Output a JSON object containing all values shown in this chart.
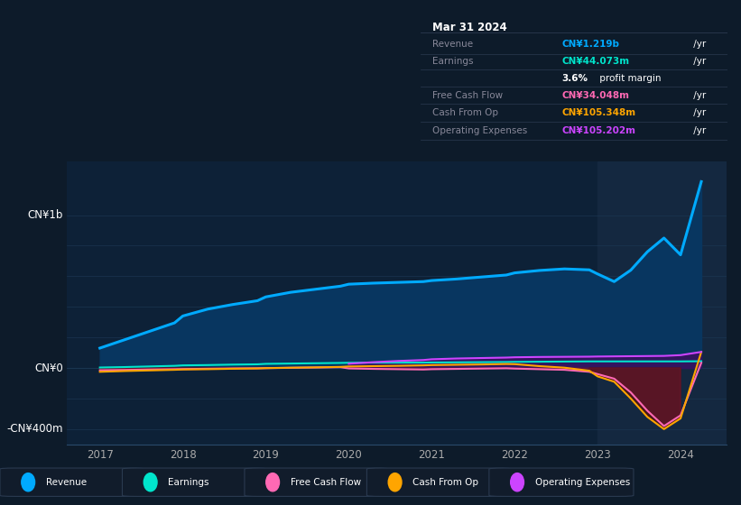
{
  "bg_color": "#0d1b2a",
  "plot_bg": "#0d2137",
  "ylabel_top": "CN¥1b",
  "ylabel_zero": "CN¥0",
  "ylabel_bottom": "-CN¥400m",
  "ylim": [
    -500,
    1350
  ],
  "xlim": [
    2016.6,
    2024.55
  ],
  "xtick_labels": [
    "2017",
    "2018",
    "2019",
    "2020",
    "2021",
    "2022",
    "2023",
    "2024"
  ],
  "xtick_values": [
    2017,
    2018,
    2019,
    2020,
    2021,
    2022,
    2023,
    2024
  ],
  "grid_color": "#1a3550",
  "revenue_color": "#00aaff",
  "revenue_fill": "#083660",
  "earnings_color": "#00e5cc",
  "fcf_color": "#ff69b4",
  "cashfromop_color": "#ffa500",
  "opex_color": "#cc44ff",
  "years": [
    2017.0,
    2017.3,
    2017.6,
    2017.9,
    2018.0,
    2018.3,
    2018.6,
    2018.9,
    2019.0,
    2019.3,
    2019.6,
    2019.9,
    2020.0,
    2020.3,
    2020.6,
    2020.9,
    2021.0,
    2021.3,
    2021.6,
    2021.9,
    2022.0,
    2022.3,
    2022.6,
    2022.9,
    2023.0,
    2023.2,
    2023.4,
    2023.6,
    2023.8,
    2024.0,
    2024.25
  ],
  "revenue": [
    130,
    185,
    240,
    295,
    340,
    385,
    415,
    440,
    465,
    495,
    515,
    535,
    548,
    555,
    560,
    565,
    572,
    582,
    595,
    608,
    622,
    638,
    648,
    642,
    615,
    565,
    640,
    760,
    850,
    740,
    1219
  ],
  "earnings": [
    3,
    6,
    10,
    14,
    17,
    19,
    22,
    24,
    27,
    29,
    31,
    33,
    34,
    35,
    35,
    35,
    36,
    37,
    38,
    39,
    40,
    41,
    42,
    43,
    43,
    43,
    43,
    43,
    43,
    43,
    44
  ],
  "fcf": [
    -15,
    -13,
    -10,
    -8,
    -7,
    -5,
    -3,
    -2,
    -1,
    1,
    3,
    5,
    -3,
    -6,
    -8,
    -10,
    -8,
    -6,
    -4,
    -2,
    -4,
    -8,
    -12,
    -25,
    -40,
    -70,
    -160,
    -280,
    -380,
    -310,
    34
  ],
  "cashfromop": [
    -25,
    -20,
    -16,
    -12,
    -10,
    -8,
    -5,
    -3,
    -1,
    2,
    4,
    7,
    10,
    12,
    14,
    17,
    19,
    21,
    23,
    26,
    25,
    12,
    2,
    -18,
    -55,
    -90,
    -200,
    -320,
    -400,
    -330,
    105
  ],
  "opex": [
    0,
    0,
    0,
    0,
    0,
    0,
    0,
    0,
    0,
    0,
    0,
    0,
    28,
    38,
    46,
    52,
    57,
    62,
    65,
    68,
    70,
    72,
    73,
    74,
    75,
    76,
    77,
    78,
    79,
    84,
    105
  ],
  "highlight_x_start": 2023.0,
  "tooltip_title": "Mar 31 2024",
  "tooltip_rows": [
    {
      "label": "Revenue",
      "value": "CN¥1.219b",
      "color": "#00aaff"
    },
    {
      "label": "Earnings",
      "value": "CN¥44.073m",
      "color": "#00e5cc"
    },
    {
      "label": "",
      "value": "3.6% profit margin",
      "color": "#ffffff"
    },
    {
      "label": "Free Cash Flow",
      "value": "CN¥34.048m",
      "color": "#ff69b4"
    },
    {
      "label": "Cash From Op",
      "value": "CN¥105.348m",
      "color": "#ffa500"
    },
    {
      "label": "Operating Expenses",
      "value": "CN¥105.202m",
      "color": "#cc44ff"
    }
  ],
  "legend_items": [
    {
      "label": "Revenue",
      "color": "#00aaff"
    },
    {
      "label": "Earnings",
      "color": "#00e5cc"
    },
    {
      "label": "Free Cash Flow",
      "color": "#ff69b4"
    },
    {
      "label": "Cash From Op",
      "color": "#ffa500"
    },
    {
      "label": "Operating Expenses",
      "color": "#cc44ff"
    }
  ]
}
